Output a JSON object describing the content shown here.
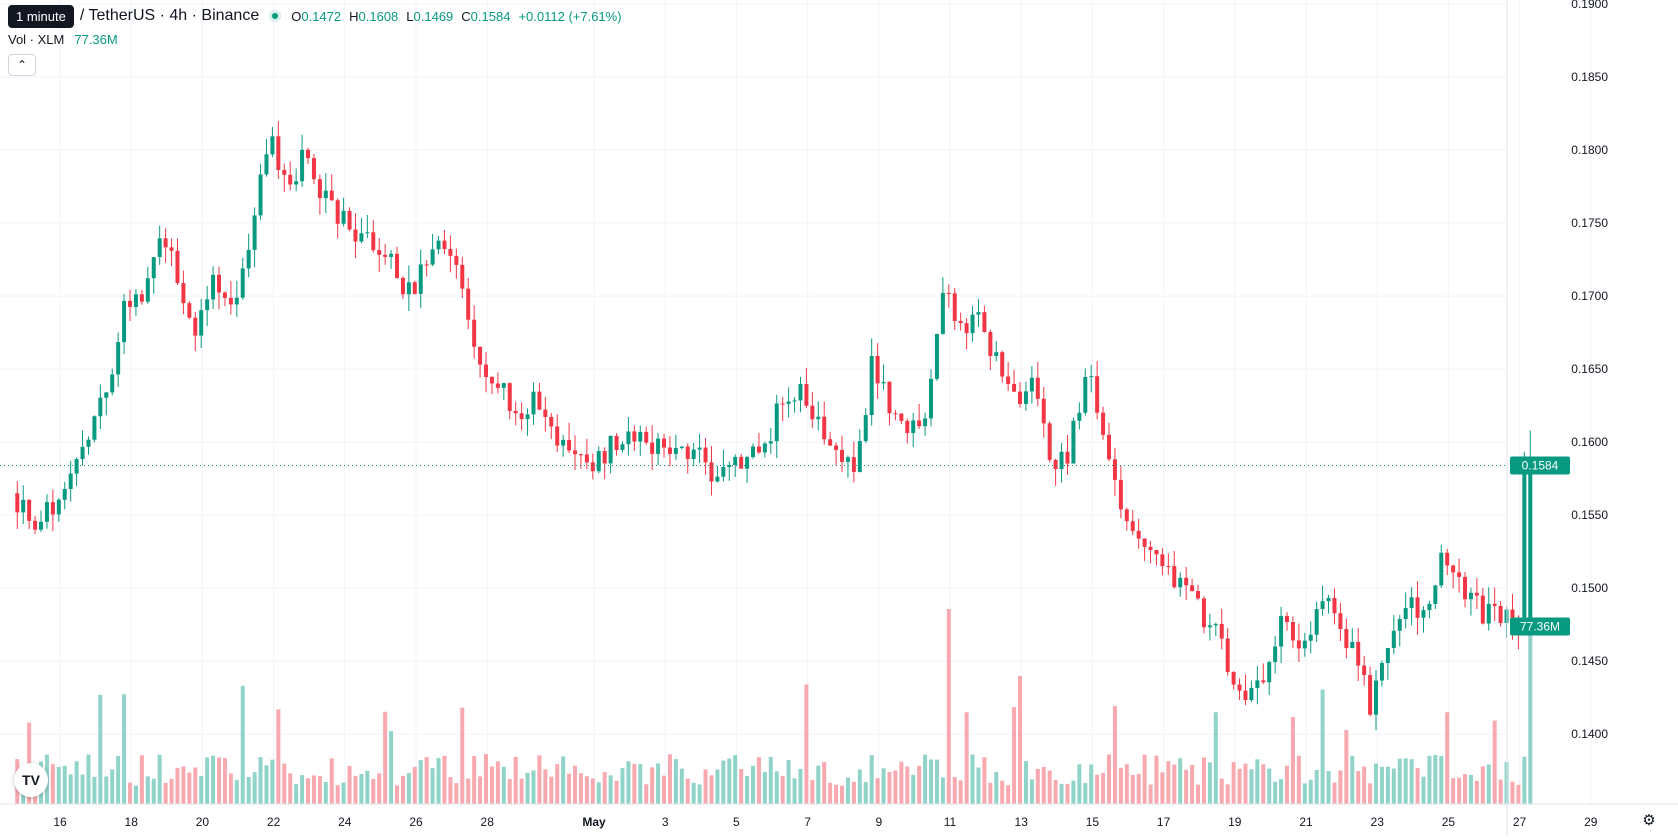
{
  "tooltip": "1 minute",
  "header": {
    "title": "/ TetherUS · 4h · Binance",
    "o_label": "O",
    "o_value": "0.1472",
    "h_label": "H",
    "h_value": "0.1608",
    "l_label": "L",
    "l_value": "0.1469",
    "c_label": "C",
    "c_value": "0.1584",
    "change": "+0.0112 (+7.61%)"
  },
  "volume_legend": {
    "label": "Vol · XLM",
    "value": "77.36M"
  },
  "colors": {
    "up": "#089981",
    "down": "#f23645",
    "up_vol": "#8fd3c9",
    "down_vol": "#f7a9af",
    "grid": "#f0f3fa",
    "text": "#131722"
  },
  "chart_data": {
    "type": "candlestick",
    "x_axis": {
      "ticks": [
        "16",
        "18",
        "20",
        "22",
        "24",
        "26",
        "28",
        "May",
        "3",
        "5",
        "7",
        "9",
        "11",
        "13",
        "15",
        "17",
        "19",
        "21",
        "23",
        "25",
        "27",
        "29"
      ],
      "tick_days": [
        0,
        2,
        4,
        6,
        8,
        10,
        12,
        15,
        17,
        19,
        21,
        23,
        25,
        27,
        29,
        31,
        33,
        35,
        37,
        39,
        41,
        43
      ]
    },
    "y_axis": {
      "ticks": [
        "0.1400",
        "0.1450",
        "0.1500",
        "0.1550",
        "0.1600",
        "0.1650",
        "0.1700",
        "0.1750",
        "0.1800",
        "0.1850",
        "0.1900"
      ],
      "range": [
        0.136,
        0.19
      ]
    },
    "last_price": {
      "label": "0.1584",
      "value": 0.1584
    },
    "volume_badge": "77.36M",
    "volume_max_millions": 85,
    "anchors": [
      [
        -1.2,
        0.1565
      ],
      [
        -0.5,
        0.1545
      ],
      [
        0,
        0.1555
      ],
      [
        0.5,
        0.1585
      ],
      [
        1,
        0.1605
      ],
      [
        1.5,
        0.1635
      ],
      [
        2,
        0.17
      ],
      [
        2.4,
        0.169
      ],
      [
        3,
        0.175
      ],
      [
        4,
        0.1675
      ],
      [
        4.5,
        0.171
      ],
      [
        5,
        0.1695
      ],
      [
        5.5,
        0.174
      ],
      [
        6,
        0.181
      ],
      [
        6.6,
        0.1775
      ],
      [
        7,
        0.1795
      ],
      [
        7.5,
        0.177
      ],
      [
        8.5,
        0.174
      ],
      [
        9.5,
        0.1725
      ],
      [
        10,
        0.17
      ],
      [
        10.5,
        0.1725
      ],
      [
        11,
        0.1735
      ],
      [
        11.5,
        0.17
      ],
      [
        12,
        0.1645
      ],
      [
        12.5,
        0.164
      ],
      [
        13,
        0.162
      ],
      [
        13.6,
        0.163
      ],
      [
        14,
        0.16
      ],
      [
        15,
        0.1585
      ],
      [
        15.8,
        0.16
      ],
      [
        16.5,
        0.1598
      ],
      [
        17.5,
        0.1595
      ],
      [
        18,
        0.1592
      ],
      [
        18.5,
        0.158
      ],
      [
        19,
        0.1585
      ],
      [
        20,
        0.16
      ],
      [
        20.5,
        0.163
      ],
      [
        21,
        0.164
      ],
      [
        21.5,
        0.161
      ],
      [
        22,
        0.159
      ],
      [
        22.5,
        0.1585
      ],
      [
        23,
        0.1655
      ],
      [
        23.5,
        0.1625
      ],
      [
        24,
        0.161
      ],
      [
        24.5,
        0.1625
      ],
      [
        25,
        0.171
      ],
      [
        25.5,
        0.167
      ],
      [
        26,
        0.169
      ],
      [
        26.5,
        0.165
      ],
      [
        27,
        0.1625
      ],
      [
        27.5,
        0.164
      ],
      [
        28,
        0.1585
      ],
      [
        28.5,
        0.159
      ],
      [
        29,
        0.1655
      ],
      [
        29.5,
        0.16
      ],
      [
        30,
        0.1545
      ],
      [
        31,
        0.1525
      ],
      [
        32,
        0.149
      ],
      [
        32.5,
        0.1475
      ],
      [
        33,
        0.1445
      ],
      [
        33.5,
        0.143
      ],
      [
        34,
        0.144
      ],
      [
        34.5,
        0.1475
      ],
      [
        35,
        0.146
      ],
      [
        35.5,
        0.1485
      ],
      [
        36,
        0.149
      ],
      [
        36.6,
        0.1445
      ],
      [
        37,
        0.142
      ],
      [
        37.5,
        0.146
      ],
      [
        38,
        0.149
      ],
      [
        38.5,
        0.148
      ],
      [
        39,
        0.153
      ],
      [
        39.5,
        0.1505
      ],
      [
        40,
        0.1485
      ],
      [
        40.5,
        0.148
      ],
      [
        41,
        0.1475
      ],
      [
        41.17,
        0.1472
      ],
      [
        41.3,
        0.1584
      ]
    ],
    "volume_anchors": [
      [
        11.3,
        42
      ],
      [
        25.0,
        85
      ],
      [
        25.5,
        40
      ],
      [
        32.5,
        40
      ]
    ]
  },
  "icons": {
    "logo": "tradingview-logo-icon",
    "settings": "settings-gear-icon",
    "collapse": "chevron-up-icon"
  },
  "logo_text": "TV"
}
